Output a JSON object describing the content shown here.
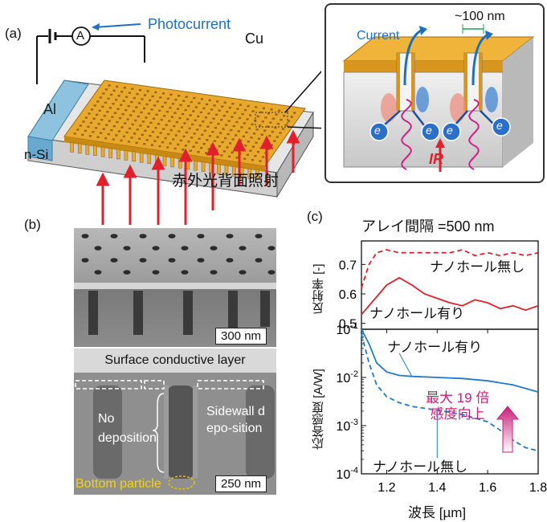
{
  "panel_a": {
    "label": "(a)",
    "ammeter": "A",
    "photocurrent": "Photocurrent",
    "cu": "Cu",
    "al": "Al",
    "nsi": "n-Si",
    "ir_backside": "赤外光背面照射",
    "inset": {
      "dimension": "~100 nm",
      "current": "Current",
      "electron": "e",
      "ir": "IR"
    }
  },
  "panel_b": {
    "label": "(b)",
    "scale_top": "300 nm",
    "surface_layer": "Surface conductive layer",
    "no_deposition": "No deposition",
    "sidewall": "Sidewall depo-sition",
    "bottom_particle": "Bottom particle",
    "scale_bottom": "250 nm"
  },
  "panel_c": {
    "label": "(c)",
    "title": "アレイ間隔 =500 nm",
    "colors": {
      "reflectance": "#e0202a",
      "responsivity": "#1f7acb",
      "arrow": "#c81e78"
    },
    "enhancement_line1": "最大 19 倍",
    "enhancement_line2": "感度向上"
  },
  "chart_data": [
    {
      "type": "line",
      "ylabel": "反射率 [-]",
      "xlim": [
        1.1,
        1.8
      ],
      "ylim": [
        0.48,
        0.78
      ],
      "yticks": [
        "0.5",
        "0.6",
        "0.7"
      ],
      "yticks_values": [
        0.5,
        0.6,
        0.7
      ],
      "series": [
        {
          "name": "ナノホール無し",
          "style": "dashed",
          "x": [
            1.1,
            1.13,
            1.16,
            1.2,
            1.25,
            1.3,
            1.35,
            1.4,
            1.45,
            1.5,
            1.55,
            1.6,
            1.65,
            1.7,
            1.75,
            1.8
          ],
          "y": [
            0.62,
            0.7,
            0.74,
            0.75,
            0.74,
            0.74,
            0.74,
            0.74,
            0.74,
            0.75,
            0.73,
            0.74,
            0.73,
            0.74,
            0.73,
            0.74
          ]
        },
        {
          "name": "ナノホール有り",
          "style": "solid",
          "x": [
            1.1,
            1.15,
            1.2,
            1.25,
            1.3,
            1.35,
            1.4,
            1.45,
            1.5,
            1.55,
            1.6,
            1.65,
            1.7,
            1.75,
            1.8
          ],
          "y": [
            0.53,
            0.58,
            0.63,
            0.655,
            0.63,
            0.6,
            0.585,
            0.57,
            0.56,
            0.58,
            0.57,
            0.55,
            0.56,
            0.545,
            0.56
          ]
        }
      ]
    },
    {
      "type": "line",
      "xlabel": "波長 [µm]",
      "ylabel": "応答感度 [A/W]",
      "xlim": [
        1.1,
        1.8
      ],
      "xticks": [
        "1.2",
        "1.4",
        "1.6",
        "1.8"
      ],
      "xticks_values": [
        1.2,
        1.4,
        1.6,
        1.8
      ],
      "ylim": [
        0.0001,
        0.1
      ],
      "yscale": "log",
      "series": [
        {
          "name": "ナノホール有り",
          "style": "solid",
          "x": [
            1.1,
            1.13,
            1.16,
            1.2,
            1.25,
            1.3,
            1.4,
            1.5,
            1.6,
            1.7,
            1.8
          ],
          "y": [
            0.1,
            0.05,
            0.02,
            0.013,
            0.011,
            0.0105,
            0.01,
            0.0095,
            0.0085,
            0.007,
            0.005
          ]
        },
        {
          "name": "ナノホール無し",
          "style": "dashed",
          "x": [
            1.1,
            1.13,
            1.16,
            1.2,
            1.25,
            1.3,
            1.4,
            1.5,
            1.6,
            1.65,
            1.7,
            1.75,
            1.8
          ],
          "y": [
            0.08,
            0.02,
            0.007,
            0.004,
            0.003,
            0.0025,
            0.0021,
            0.0017,
            0.0012,
            0.0008,
            0.0005,
            0.00035,
            0.0003
          ]
        }
      ]
    }
  ]
}
